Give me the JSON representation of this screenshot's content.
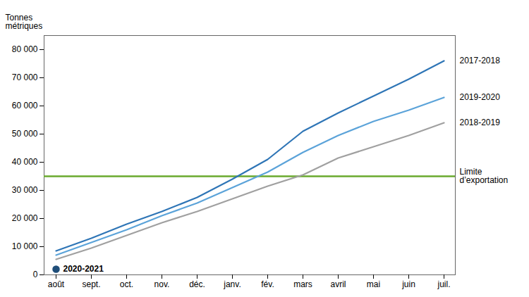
{
  "chart_data": {
    "type": "line",
    "ylabel": "Tonnes\nmétriques",
    "categories": [
      "août",
      "sept.",
      "oct.",
      "nov.",
      "déc.",
      "janv.",
      "fév.",
      "mars",
      "avril",
      "mai",
      "juin",
      "juil."
    ],
    "series": [
      {
        "name": "2017-2018",
        "color": "#2e75b6",
        "type": "line",
        "values": [
          8500,
          13000,
          18000,
          22500,
          27500,
          34000,
          41000,
          51000,
          57500,
          63500,
          69500,
          76000
        ]
      },
      {
        "name": "2019-2020",
        "color": "#5ba3d9",
        "type": "line",
        "values": [
          7000,
          11500,
          16000,
          21000,
          25500,
          31000,
          36500,
          43500,
          49500,
          54500,
          58500,
          63000
        ]
      },
      {
        "name": "2018-2019",
        "color": "#a0a0a0",
        "type": "line",
        "values": [
          5500,
          9500,
          14000,
          18500,
          22500,
          27000,
          31500,
          35500,
          41500,
          45500,
          49500,
          54000
        ]
      },
      {
        "name": "2020-2021",
        "color": "#1f4e79",
        "type": "scatter",
        "marker": "circle",
        "values": [
          2000,
          null,
          null,
          null,
          null,
          null,
          null,
          null,
          null,
          null,
          null,
          null
        ]
      }
    ],
    "annotations": [
      {
        "type": "hline",
        "text": "Limite\nd’exportation",
        "y": 35000,
        "color": "#6aaa2e"
      }
    ],
    "ylim": [
      0,
      85000
    ],
    "yticks": [
      0,
      {
        "value": 10000,
        "label": "10 000"
      },
      {
        "value": 20000,
        "label": "20 000"
      },
      {
        "value": 30000,
        "label": "30 000"
      },
      {
        "value": 40000,
        "label": "40 000"
      },
      {
        "value": 50000,
        "label": "50 000"
      },
      {
        "value": 60000,
        "label": "60 000"
      },
      {
        "value": 70000,
        "label": "70 000"
      },
      {
        "value": 80000,
        "label": "80 000"
      }
    ],
    "grid": false
  }
}
